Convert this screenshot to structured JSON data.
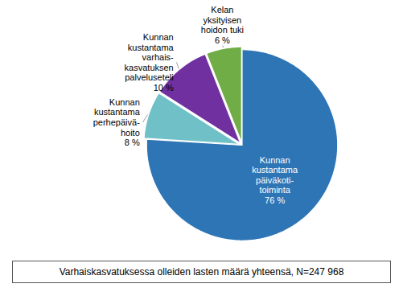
{
  "chart_data": {
    "type": "pie",
    "categories": [
      "Kunnan\nkustantama\npäiväkoti-\ntoiminta",
      "Kunnan\nkustantama\nperhepäivä-\nhoito",
      "Kunnan\nkustantama\nvarhais-\nkasvatuksen\npalveluseteli",
      "Kelan\nyksityisen\nhoidon tuki"
    ],
    "values": [
      76,
      8,
      10,
      6
    ],
    "value_labels": [
      "76 %",
      "8 %",
      "10 %",
      "6 %"
    ],
    "colors": [
      "#2E75B6",
      "#70C0C8",
      "#7030A0",
      "#70AD47"
    ],
    "data_labels": true,
    "caption": "Varhaiskasvatuksessa olleiden lasten määrä yhteensä, N=247 968"
  }
}
